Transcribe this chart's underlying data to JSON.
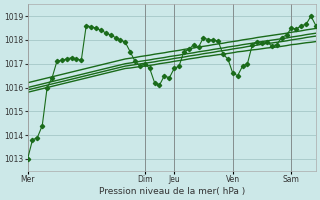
{
  "background_color": "#cce8e8",
  "grid_color": "#aacccc",
  "line_color": "#1a6b1a",
  "xlabel": "Pression niveau de la mer( hPa )",
  "ylim": [
    1012.5,
    1019.5
  ],
  "yticks": [
    1013,
    1014,
    1015,
    1016,
    1017,
    1018,
    1019
  ],
  "day_labels": [
    "Mer",
    "Dim",
    "Jeu",
    "Ven",
    "Sam"
  ],
  "day_x": [
    0,
    24,
    30,
    42,
    54
  ],
  "n_points": 60,
  "series_main": [
    1013.0,
    1013.8,
    1013.9,
    1014.4,
    1016.0,
    1016.4,
    1017.1,
    1017.15,
    1017.2,
    1017.25,
    1017.2,
    1017.15,
    1018.6,
    1018.55,
    1018.5,
    1018.4,
    1018.3,
    1018.2,
    1018.1,
    1018.0,
    1017.9,
    1017.5,
    1017.1,
    1016.9,
    1017.0,
    1016.8,
    1016.2,
    1016.1,
    1016.5,
    1016.4,
    1016.8,
    1016.9,
    1017.5,
    1017.6,
    1017.8,
    1017.7,
    1018.1,
    1018.0,
    1018.0,
    1017.95,
    1017.4,
    1017.2,
    1016.6,
    1016.5,
    1016.9,
    1017.0,
    1017.8,
    1017.9,
    1017.85,
    1017.9,
    1017.75,
    1017.8,
    1018.1,
    1018.2,
    1018.5,
    1018.45,
    1018.6,
    1018.65,
    1019.0,
    1018.6
  ],
  "series_trend": [
    [
      1015.8,
      1015.85,
      1015.9,
      1015.95,
      1016.0,
      1016.05,
      1016.1,
      1016.15,
      1016.2,
      1016.25,
      1016.3,
      1016.35,
      1016.4,
      1016.45,
      1016.5,
      1016.55,
      1016.6,
      1016.65,
      1016.7,
      1016.75,
      1016.8,
      1016.82,
      1016.85,
      1016.88,
      1016.9,
      1016.93,
      1016.96,
      1017.0,
      1017.03,
      1017.06,
      1017.1,
      1017.13,
      1017.16,
      1017.2,
      1017.23,
      1017.26,
      1017.3,
      1017.32,
      1017.35,
      1017.38,
      1017.4,
      1017.43,
      1017.46,
      1017.5,
      1017.52,
      1017.55,
      1017.58,
      1017.6,
      1017.63,
      1017.66,
      1017.68,
      1017.7,
      1017.73,
      1017.76,
      1017.8,
      1017.82,
      1017.85,
      1017.88,
      1017.9,
      1017.93
    ],
    [
      1015.9,
      1015.95,
      1016.0,
      1016.05,
      1016.1,
      1016.15,
      1016.2,
      1016.25,
      1016.3,
      1016.35,
      1016.4,
      1016.45,
      1016.5,
      1016.55,
      1016.6,
      1016.65,
      1016.7,
      1016.75,
      1016.8,
      1016.85,
      1016.9,
      1016.93,
      1016.96,
      1016.99,
      1017.02,
      1017.05,
      1017.08,
      1017.12,
      1017.15,
      1017.18,
      1017.22,
      1017.25,
      1017.28,
      1017.32,
      1017.35,
      1017.38,
      1017.42,
      1017.45,
      1017.48,
      1017.52,
      1017.55,
      1017.58,
      1017.62,
      1017.65,
      1017.68,
      1017.72,
      1017.75,
      1017.78,
      1017.82,
      1017.85,
      1017.87,
      1017.9,
      1017.93,
      1017.96,
      1018.0,
      1018.03,
      1018.06,
      1018.1,
      1018.13,
      1018.16
    ],
    [
      1016.0,
      1016.05,
      1016.1,
      1016.15,
      1016.2,
      1016.25,
      1016.3,
      1016.35,
      1016.4,
      1016.45,
      1016.5,
      1016.55,
      1016.6,
      1016.65,
      1016.7,
      1016.75,
      1016.8,
      1016.85,
      1016.9,
      1016.95,
      1017.0,
      1017.03,
      1017.06,
      1017.1,
      1017.13,
      1017.16,
      1017.2,
      1017.23,
      1017.26,
      1017.3,
      1017.33,
      1017.36,
      1017.4,
      1017.43,
      1017.46,
      1017.5,
      1017.53,
      1017.56,
      1017.6,
      1017.63,
      1017.66,
      1017.7,
      1017.73,
      1017.76,
      1017.8,
      1017.83,
      1017.86,
      1017.9,
      1017.93,
      1017.96,
      1017.99,
      1018.02,
      1018.05,
      1018.08,
      1018.12,
      1018.15,
      1018.18,
      1018.22,
      1018.25,
      1018.28
    ],
    [
      1016.2,
      1016.25,
      1016.3,
      1016.35,
      1016.4,
      1016.45,
      1016.5,
      1016.55,
      1016.6,
      1016.65,
      1016.7,
      1016.75,
      1016.8,
      1016.85,
      1016.9,
      1016.95,
      1017.0,
      1017.05,
      1017.1,
      1017.15,
      1017.2,
      1017.23,
      1017.26,
      1017.3,
      1017.33,
      1017.36,
      1017.4,
      1017.43,
      1017.46,
      1017.5,
      1017.53,
      1017.56,
      1017.6,
      1017.63,
      1017.66,
      1017.7,
      1017.73,
      1017.76,
      1017.8,
      1017.83,
      1017.86,
      1017.9,
      1017.93,
      1017.96,
      1018.0,
      1018.03,
      1018.06,
      1018.1,
      1018.13,
      1018.16,
      1018.19,
      1018.22,
      1018.25,
      1018.28,
      1018.32,
      1018.35,
      1018.38,
      1018.42,
      1018.45,
      1018.48
    ]
  ]
}
